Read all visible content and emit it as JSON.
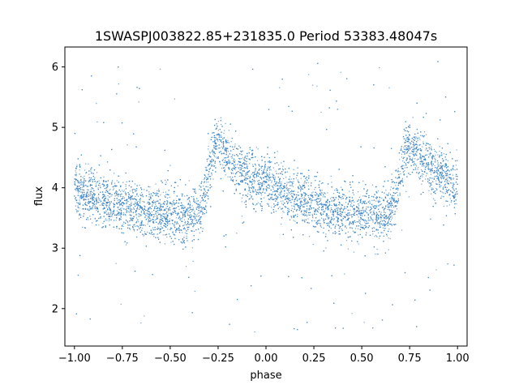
{
  "chart_data": {
    "type": "scatter",
    "title": "1SWASPJ003822.85+231835.0 Period 53383.48047s",
    "xlabel": "phase",
    "ylabel": "flux",
    "xlim": [
      -1.05,
      1.05
    ],
    "ylim": [
      1.38,
      6.33
    ],
    "xticks": [
      -1.0,
      -0.75,
      -0.5,
      -0.25,
      0.0,
      0.25,
      0.5,
      0.75,
      1.0
    ],
    "xtick_labels": [
      "−1.00",
      "−0.75",
      "−0.50",
      "−0.25",
      "0.00",
      "0.25",
      "0.50",
      "0.75",
      "1.00"
    ],
    "yticks": [
      2,
      3,
      4,
      5,
      6
    ],
    "ytick_labels": [
      "2",
      "3",
      "4",
      "5",
      "6"
    ],
    "grid": false,
    "point_color": "#3d85c6",
    "profile": {
      "phase": [
        -1.0,
        -0.9,
        -0.8,
        -0.7,
        -0.6,
        -0.5,
        -0.4,
        -0.36,
        -0.32,
        -0.28,
        -0.26,
        -0.2,
        -0.1,
        0.0,
        0.1,
        0.2,
        0.3,
        0.4,
        0.5,
        0.6,
        0.64,
        0.68,
        0.72,
        0.74,
        0.8,
        0.9,
        1.0
      ],
      "flux": [
        3.95,
        3.85,
        3.75,
        3.68,
        3.6,
        3.55,
        3.52,
        3.55,
        3.9,
        4.5,
        4.75,
        4.5,
        4.2,
        4.05,
        3.9,
        3.8,
        3.7,
        3.62,
        3.55,
        3.52,
        3.55,
        3.9,
        4.5,
        4.75,
        4.5,
        4.25,
        4.0
      ]
    },
    "scatter_sd": 0.22,
    "outlier_range": [
      1.6,
      6.1
    ]
  }
}
